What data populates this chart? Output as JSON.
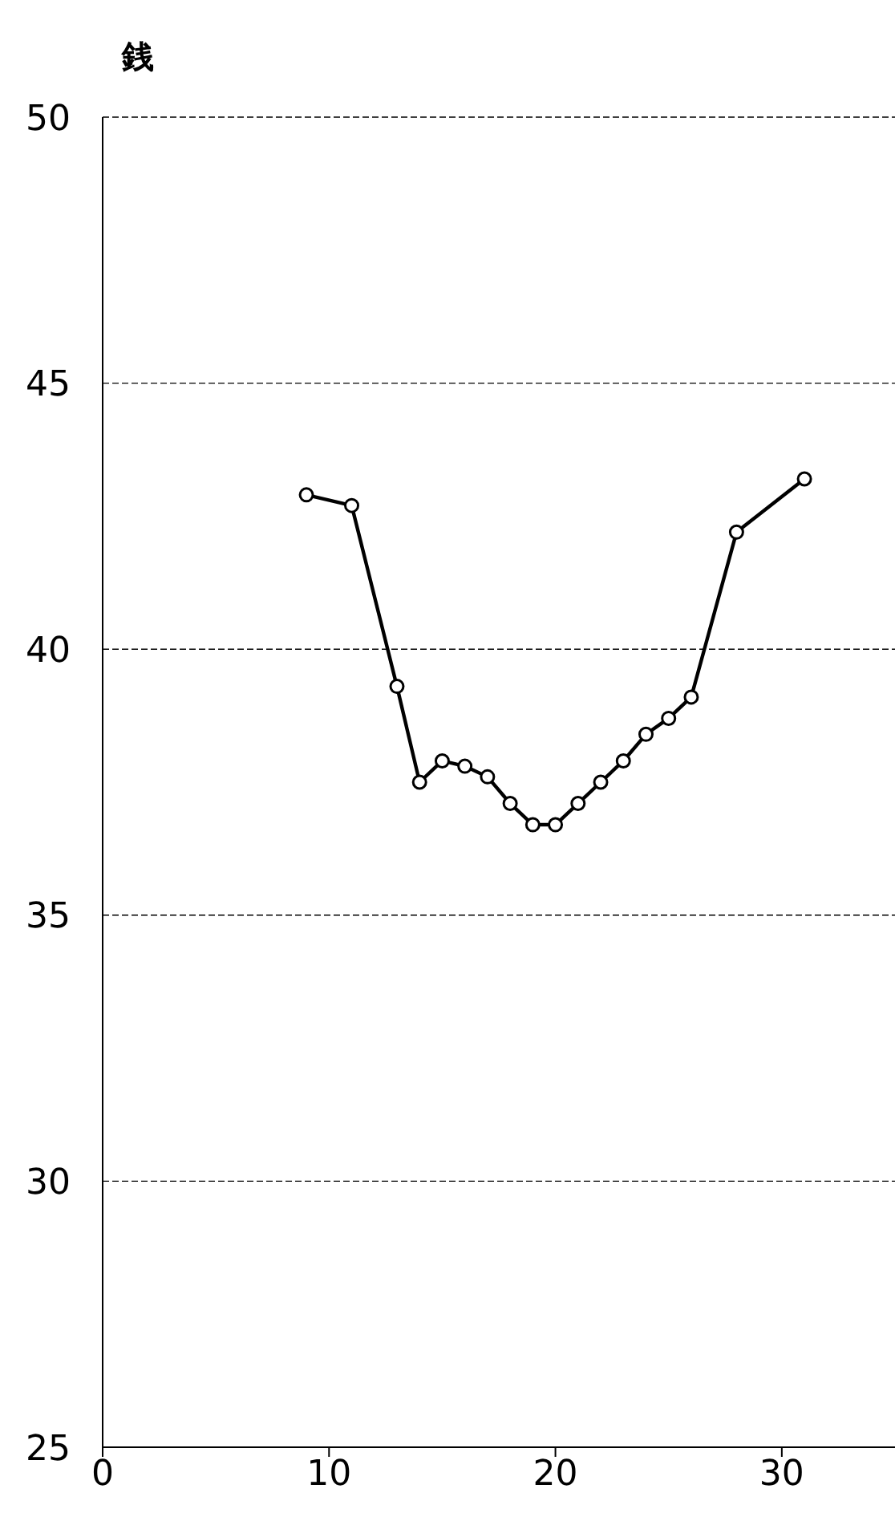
{
  "chart_data": {
    "type": "line",
    "ylabel": "銭",
    "x": [
      9,
      11,
      13,
      14,
      15,
      16,
      17,
      18,
      19,
      20,
      21,
      22,
      23,
      24,
      25,
      26,
      28,
      31
    ],
    "series": [
      {
        "color": "#000000",
        "values": [
          42.9,
          42.7,
          39.3,
          37.5,
          37.9,
          37.8,
          37.6,
          37.1,
          36.7,
          36.7,
          37.1,
          37.5,
          37.9,
          38.4,
          38.7,
          39.1,
          42.2,
          43.2
        ]
      }
    ],
    "xlim": [
      0,
      35
    ],
    "xticks": [
      0,
      10,
      20,
      30
    ],
    "ylim": [
      25,
      50
    ],
    "yticks": [
      25,
      30,
      35,
      40,
      45,
      50
    ],
    "grid": "y",
    "marker": "circle",
    "line_style": "solid"
  }
}
